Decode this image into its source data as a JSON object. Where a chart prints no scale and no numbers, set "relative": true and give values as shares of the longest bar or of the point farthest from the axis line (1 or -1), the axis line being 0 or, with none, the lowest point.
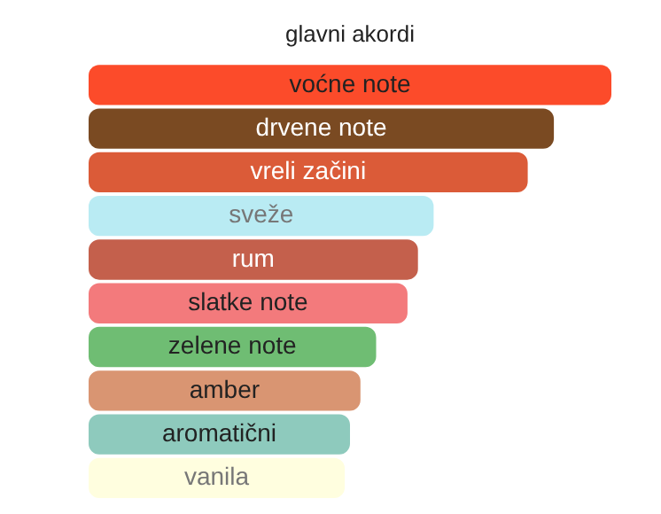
{
  "chart_data": {
    "type": "bar",
    "orientation": "horizontal",
    "relative": true,
    "title": "glavni akordi",
    "categories": [
      "voćne note",
      "drvene note",
      "vreli začini",
      "sveže",
      "rum",
      "slatke note",
      "zelene note",
      "amber",
      "aromatični",
      "vanila"
    ],
    "values": [
      1,
      0.89,
      0.84,
      0.66,
      0.63,
      0.61,
      0.55,
      0.52,
      0.5,
      0.49
    ],
    "colors": [
      "#fc4b2a",
      "#7a4a22",
      "#db5b38",
      "#b9ebf3",
      "#c4604c",
      "#f37a7c",
      "#6fbd73",
      "#d99572",
      "#8ecabd",
      "#fffedf"
    ],
    "legend": false
  }
}
